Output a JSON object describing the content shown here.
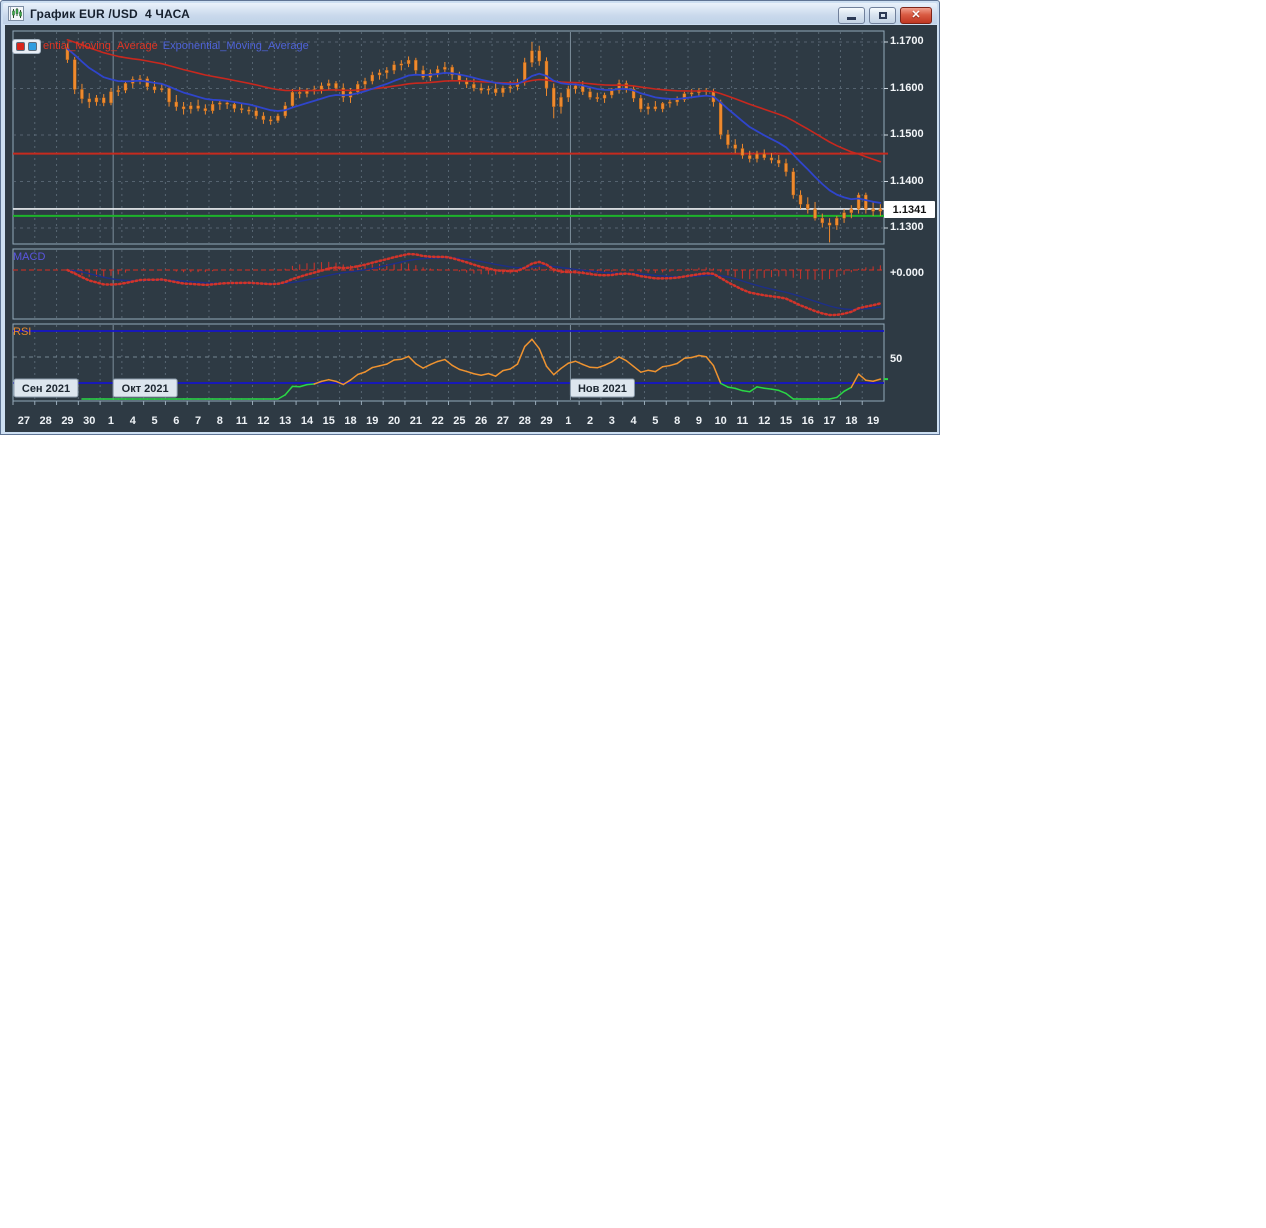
{
  "window": {
    "title": "График EUR /USD  4 ЧАСА"
  },
  "legend": {
    "red_label": "ential_Moving_Average",
    "blue_label": "Exponential_Moving_Average",
    "red_color": "#d8251c",
    "blue_color": "#2f9de0"
  },
  "indicators_text": {
    "macd_label": "MACD",
    "rsi_label": "RSI",
    "macd_axis": "+0.000",
    "rsi_axis": "50"
  },
  "price_axis": {
    "labels": [
      {
        "text": "1.1700",
        "value": 1.17
      },
      {
        "text": "1.1600",
        "value": 1.16
      },
      {
        "text": "1.1500",
        "value": 1.15
      },
      {
        "text": "1.1400",
        "value": 1.14
      },
      {
        "text": "1.1300",
        "value": 1.13
      }
    ],
    "current": "1.1341"
  },
  "chart_data": {
    "type": "candlestick",
    "symbol": "EUR/USD",
    "timeframe": "4H",
    "price_axis_range": [
      1.128,
      1.172
    ],
    "grid_step": 0.01,
    "current_price": 1.1341,
    "levels": {
      "resistance_red": 1.146,
      "current_white": 1.1341,
      "support_green": 1.1326
    },
    "x_day_labels": [
      "27",
      "28",
      "29",
      "30",
      "1",
      "4",
      "5",
      "6",
      "7",
      "8",
      "11",
      "12",
      "13",
      "14",
      "15",
      "18",
      "19",
      "20",
      "21",
      "22",
      "25",
      "26",
      "27",
      "28",
      "29",
      "1",
      "2",
      "3",
      "4",
      "5",
      "8",
      "9",
      "10",
      "11",
      "12",
      "15",
      "16",
      "17",
      "18",
      "19"
    ],
    "months": [
      {
        "label": "Сен 2021",
        "day": 0
      },
      {
        "label": "Окт 2021",
        "day": 4.6
      },
      {
        "label": "Нов 2021",
        "day": 25.6
      }
    ],
    "slots_total": 120,
    "lead_empty_slots": 7,
    "indicator_settings": {
      "ema_fast": {
        "period": 12,
        "color": "#2f45cc"
      },
      "ema_slow": {
        "period": 40,
        "color": "#c8281e"
      },
      "macd": {
        "fast": 12,
        "slow": 26,
        "signal": 9,
        "zero_label": "+0.000"
      },
      "rsi": {
        "period": 14,
        "upper": 70,
        "mid": 50,
        "lower": 30
      }
    },
    "candles": [
      [
        1.1688,
        1.1697,
        1.1655,
        1.1662
      ],
      [
        1.1662,
        1.1668,
        1.1588,
        1.1598
      ],
      [
        1.1598,
        1.161,
        1.1568,
        1.1578
      ],
      [
        1.1578,
        1.159,
        1.1558,
        1.1571
      ],
      [
        1.1571,
        1.1586,
        1.1563,
        1.158
      ],
      [
        1.158,
        1.1588,
        1.1562,
        1.1569
      ],
      [
        1.1569,
        1.1601,
        1.1564,
        1.1593
      ],
      [
        1.1593,
        1.1606,
        1.1584,
        1.1596
      ],
      [
        1.1596,
        1.1616,
        1.159,
        1.1611
      ],
      [
        1.1611,
        1.1626,
        1.1601,
        1.162
      ],
      [
        1.162,
        1.1629,
        1.1609,
        1.1621
      ],
      [
        1.1621,
        1.1626,
        1.1596,
        1.1604
      ],
      [
        1.1604,
        1.1616,
        1.159,
        1.1597
      ],
      [
        1.1597,
        1.1611,
        1.1592,
        1.16
      ],
      [
        1.16,
        1.1606,
        1.1561,
        1.1571
      ],
      [
        1.1571,
        1.1586,
        1.1552,
        1.1561
      ],
      [
        1.1561,
        1.1571,
        1.1544,
        1.1556
      ],
      [
        1.1556,
        1.1571,
        1.1546,
        1.1563
      ],
      [
        1.1563,
        1.1576,
        1.1551,
        1.1557
      ],
      [
        1.1557,
        1.1566,
        1.1544,
        1.1552
      ],
      [
        1.1552,
        1.1573,
        1.1546,
        1.1566
      ],
      [
        1.1566,
        1.1576,
        1.1554,
        1.1569
      ],
      [
        1.1569,
        1.1573,
        1.1556,
        1.1566
      ],
      [
        1.1566,
        1.1572,
        1.1549,
        1.1557
      ],
      [
        1.1557,
        1.1568,
        1.1547,
        1.1554
      ],
      [
        1.1554,
        1.1561,
        1.1544,
        1.1552
      ],
      [
        1.1552,
        1.156,
        1.1534,
        1.1541
      ],
      [
        1.1541,
        1.1549,
        1.1524,
        1.1533
      ],
      [
        1.1533,
        1.1541,
        1.1522,
        1.1531
      ],
      [
        1.1531,
        1.1546,
        1.1526,
        1.1541
      ],
      [
        1.1541,
        1.1571,
        1.1536,
        1.1563
      ],
      [
        1.1563,
        1.1599,
        1.1558,
        1.1592
      ],
      [
        1.1592,
        1.1603,
        1.1579,
        1.1589
      ],
      [
        1.1589,
        1.1601,
        1.1581,
        1.1596
      ],
      [
        1.1596,
        1.1606,
        1.1587,
        1.1598
      ],
      [
        1.1598,
        1.1613,
        1.1589,
        1.1606
      ],
      [
        1.1606,
        1.1619,
        1.1596,
        1.1611
      ],
      [
        1.1611,
        1.1616,
        1.1594,
        1.1601
      ],
      [
        1.1601,
        1.1611,
        1.1571,
        1.1581
      ],
      [
        1.1581,
        1.1601,
        1.1569,
        1.1593
      ],
      [
        1.1593,
        1.1616,
        1.1587,
        1.1609
      ],
      [
        1.1609,
        1.1623,
        1.1599,
        1.1616
      ],
      [
        1.1616,
        1.1636,
        1.1609,
        1.1629
      ],
      [
        1.1629,
        1.1641,
        1.1619,
        1.1634
      ],
      [
        1.1634,
        1.1646,
        1.1621,
        1.1639
      ],
      [
        1.1639,
        1.1659,
        1.1631,
        1.1651
      ],
      [
        1.1651,
        1.1661,
        1.1639,
        1.1653
      ],
      [
        1.1653,
        1.1669,
        1.1646,
        1.1661
      ],
      [
        1.1661,
        1.1666,
        1.1629,
        1.1639
      ],
      [
        1.1639,
        1.1649,
        1.1619,
        1.1624
      ],
      [
        1.1624,
        1.1641,
        1.1616,
        1.1633
      ],
      [
        1.1633,
        1.1649,
        1.1624,
        1.1641
      ],
      [
        1.1641,
        1.1657,
        1.1631,
        1.1646
      ],
      [
        1.1646,
        1.1651,
        1.1619,
        1.1629
      ],
      [
        1.1629,
        1.1636,
        1.1609,
        1.1616
      ],
      [
        1.1616,
        1.1623,
        1.1601,
        1.1609
      ],
      [
        1.1609,
        1.1621,
        1.1594,
        1.1601
      ],
      [
        1.1601,
        1.1611,
        1.1589,
        1.1596
      ],
      [
        1.1596,
        1.1606,
        1.1587,
        1.1599
      ],
      [
        1.1599,
        1.1611,
        1.1584,
        1.1591
      ],
      [
        1.1591,
        1.1606,
        1.1582,
        1.1601
      ],
      [
        1.1601,
        1.1616,
        1.1591,
        1.1604
      ],
      [
        1.1604,
        1.1621,
        1.1596,
        1.1613
      ],
      [
        1.1613,
        1.1666,
        1.1606,
        1.1656
      ],
      [
        1.1656,
        1.17,
        1.1646,
        1.1681
      ],
      [
        1.1681,
        1.1692,
        1.1649,
        1.1659
      ],
      [
        1.1659,
        1.1667,
        1.1584,
        1.1601
      ],
      [
        1.1601,
        1.1611,
        1.1536,
        1.1561
      ],
      [
        1.1561,
        1.1591,
        1.1546,
        1.1581
      ],
      [
        1.1581,
        1.1606,
        1.1571,
        1.1599
      ],
      [
        1.1599,
        1.1611,
        1.1589,
        1.1606
      ],
      [
        1.1606,
        1.1616,
        1.1586,
        1.1593
      ],
      [
        1.1593,
        1.1601,
        1.1576,
        1.1581
      ],
      [
        1.1581,
        1.1591,
        1.1571,
        1.1579
      ],
      [
        1.1579,
        1.1591,
        1.1569,
        1.1586
      ],
      [
        1.1586,
        1.1601,
        1.1579,
        1.1596
      ],
      [
        1.1596,
        1.1619,
        1.1589,
        1.1611
      ],
      [
        1.1611,
        1.1617,
        1.1591,
        1.1599
      ],
      [
        1.1599,
        1.1606,
        1.1571,
        1.1579
      ],
      [
        1.1579,
        1.1586,
        1.1549,
        1.1556
      ],
      [
        1.1556,
        1.1569,
        1.1544,
        1.1561
      ],
      [
        1.1561,
        1.1573,
        1.1551,
        1.1556
      ],
      [
        1.1556,
        1.1571,
        1.1549,
        1.1568
      ],
      [
        1.1568,
        1.1579,
        1.1559,
        1.1571
      ],
      [
        1.1571,
        1.1583,
        1.1563,
        1.1576
      ],
      [
        1.1576,
        1.1593,
        1.1571,
        1.1589
      ],
      [
        1.1589,
        1.1599,
        1.1579,
        1.1591
      ],
      [
        1.1591,
        1.1601,
        1.1583,
        1.1596
      ],
      [
        1.1596,
        1.1601,
        1.1586,
        1.1593
      ],
      [
        1.1593,
        1.1599,
        1.1561,
        1.1571
      ],
      [
        1.1571,
        1.1576,
        1.1491,
        1.1501
      ],
      [
        1.1501,
        1.1511,
        1.1471,
        1.1479
      ],
      [
        1.1479,
        1.1491,
        1.1461,
        1.1471
      ],
      [
        1.1471,
        1.1481,
        1.1449,
        1.1456
      ],
      [
        1.1456,
        1.1466,
        1.1441,
        1.1449
      ],
      [
        1.1449,
        1.1466,
        1.1441,
        1.1459
      ],
      [
        1.1459,
        1.1469,
        1.1446,
        1.1451
      ],
      [
        1.1451,
        1.1461,
        1.1439,
        1.1446
      ],
      [
        1.1446,
        1.1457,
        1.1431,
        1.1439
      ],
      [
        1.1439,
        1.1449,
        1.1411,
        1.1421
      ],
      [
        1.1421,
        1.1429,
        1.1363,
        1.1371
      ],
      [
        1.1371,
        1.1381,
        1.1341,
        1.1351
      ],
      [
        1.1351,
        1.1366,
        1.1331,
        1.1341
      ],
      [
        1.1341,
        1.1356,
        1.1316,
        1.1321
      ],
      [
        1.1321,
        1.1331,
        1.1301,
        1.1311
      ],
      [
        1.1311,
        1.1321,
        1.1269,
        1.1306
      ],
      [
        1.1306,
        1.1326,
        1.1296,
        1.1321
      ],
      [
        1.1321,
        1.1341,
        1.1311,
        1.1333
      ],
      [
        1.1333,
        1.1349,
        1.1321,
        1.1341
      ],
      [
        1.1341,
        1.1376,
        1.1331,
        1.1371
      ],
      [
        1.1371,
        1.1376,
        1.1331,
        1.1341
      ],
      [
        1.1341,
        1.1356,
        1.1326,
        1.1336
      ],
      [
        1.1336,
        1.1351,
        1.1326,
        1.1341
      ]
    ]
  },
  "colors": {
    "client_bg": "#2e3a44",
    "pane_border": "#93a9ba",
    "grid": "#5f6e7b",
    "month_line": "#8698a6",
    "candle": "#ef8a2e",
    "ema_fast": "#2f45cc",
    "ema_slow": "#c8281e",
    "level_red": "#c62a1e",
    "level_white": "#eef1f5",
    "level_green": "#1db32a",
    "macd_line": "#d2342a",
    "macd_signal": "#1d2f88",
    "macd_zero": "#b83228",
    "rsi_line": "#ef9330",
    "rsi_oversold": "#2ad846",
    "rsi_band": "#1515c8",
    "text": "#eef2f6"
  }
}
